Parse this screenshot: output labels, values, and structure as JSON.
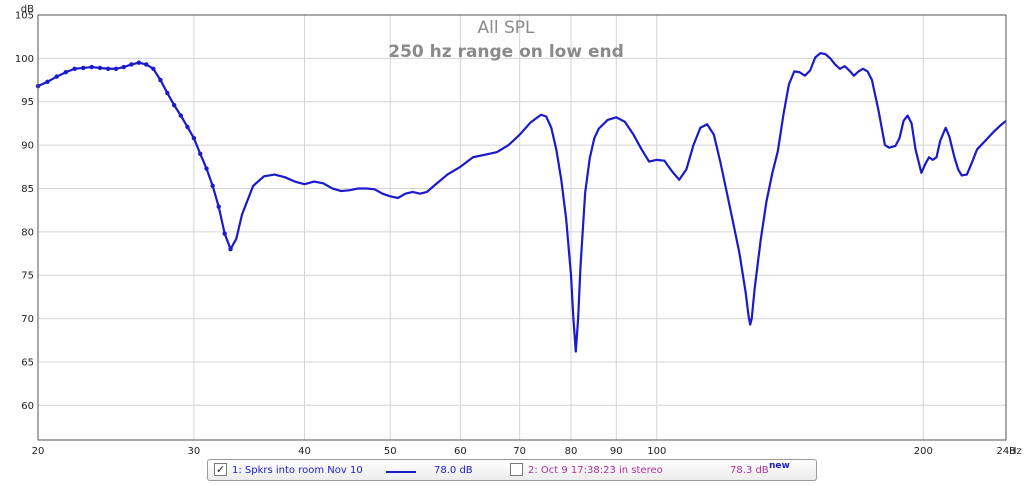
{
  "chart_data": {
    "type": "line",
    "title": "All SPL",
    "subtitle": "250 hz range on low end",
    "ylabel": "dB",
    "xunit": "Hz",
    "xscale": "log",
    "xlim": [
      20,
      248
    ],
    "ylim": [
      56,
      105
    ],
    "grid": true,
    "x_ticks": [
      {
        "value": 20,
        "label": "20"
      },
      {
        "value": 30,
        "label": "30"
      },
      {
        "value": 40,
        "label": "40"
      },
      {
        "value": 50,
        "label": "50"
      },
      {
        "value": 60,
        "label": "60"
      },
      {
        "value": 70,
        "label": "70"
      },
      {
        "value": 80,
        "label": "80"
      },
      {
        "value": 90,
        "label": "90"
      },
      {
        "value": 100,
        "label": "100"
      },
      {
        "value": 200,
        "label": "200"
      },
      {
        "value": 248,
        "label": "248"
      }
    ],
    "y_ticks": [
      60,
      65,
      70,
      75,
      80,
      85,
      90,
      95,
      100,
      105
    ],
    "series": [
      {
        "name": "1: Spkrs into room Nov 10",
        "color": "#1a1acc",
        "points": [
          [
            20.0,
            96.8
          ],
          [
            20.5,
            97.3
          ],
          [
            21.0,
            97.9
          ],
          [
            21.5,
            98.4
          ],
          [
            22.0,
            98.8
          ],
          [
            22.5,
            98.9
          ],
          [
            23.0,
            99.0
          ],
          [
            23.5,
            98.9
          ],
          [
            24.0,
            98.8
          ],
          [
            24.5,
            98.8
          ],
          [
            25.0,
            99.0
          ],
          [
            25.5,
            99.3
          ],
          [
            26.0,
            99.5
          ],
          [
            26.5,
            99.3
          ],
          [
            27.0,
            98.8
          ],
          [
            27.5,
            97.5
          ],
          [
            28.0,
            96.0
          ],
          [
            28.5,
            94.6
          ],
          [
            29.0,
            93.4
          ],
          [
            29.5,
            92.1
          ],
          [
            30.0,
            90.8
          ],
          [
            30.5,
            89.0
          ],
          [
            31.0,
            87.3
          ],
          [
            31.5,
            85.3
          ],
          [
            32.0,
            82.9
          ],
          [
            32.5,
            79.8
          ],
          [
            33.0,
            78.0
          ],
          [
            33.5,
            79.2
          ],
          [
            34.0,
            82.0
          ],
          [
            35.0,
            85.3
          ],
          [
            36.0,
            86.4
          ],
          [
            37.0,
            86.6
          ],
          [
            38.0,
            86.3
          ],
          [
            39.0,
            85.8
          ],
          [
            40.0,
            85.5
          ],
          [
            41.0,
            85.8
          ],
          [
            42.0,
            85.6
          ],
          [
            43.0,
            85.0
          ],
          [
            44.0,
            84.7
          ],
          [
            45.0,
            84.8
          ],
          [
            46.0,
            85.0
          ],
          [
            47.0,
            85.0
          ],
          [
            48.0,
            84.9
          ],
          [
            49.0,
            84.4
          ],
          [
            50.0,
            84.1
          ],
          [
            51.0,
            83.9
          ],
          [
            52.0,
            84.4
          ],
          [
            53.0,
            84.6
          ],
          [
            54.0,
            84.4
          ],
          [
            55.0,
            84.6
          ],
          [
            56.0,
            85.3
          ],
          [
            58.0,
            86.6
          ],
          [
            60.0,
            87.5
          ],
          [
            62.0,
            88.6
          ],
          [
            64.0,
            88.9
          ],
          [
            66.0,
            89.2
          ],
          [
            68.0,
            90.0
          ],
          [
            70.0,
            91.2
          ],
          [
            72.0,
            92.6
          ],
          [
            74.0,
            93.5
          ],
          [
            75.0,
            93.3
          ],
          [
            76.0,
            92.0
          ],
          [
            77.0,
            89.5
          ],
          [
            78.0,
            86.0
          ],
          [
            79.0,
            81.5
          ],
          [
            80.0,
            75.0
          ],
          [
            80.5,
            70.0
          ],
          [
            81.0,
            66.2
          ],
          [
            81.5,
            70.0
          ],
          [
            82.0,
            76.0
          ],
          [
            83.0,
            84.5
          ],
          [
            84.0,
            88.5
          ],
          [
            85.0,
            90.8
          ],
          [
            86.0,
            91.9
          ],
          [
            88.0,
            92.9
          ],
          [
            90.0,
            93.2
          ],
          [
            92.0,
            92.7
          ],
          [
            94.0,
            91.3
          ],
          [
            96.0,
            89.6
          ],
          [
            98.0,
            88.1
          ],
          [
            100.0,
            88.3
          ],
          [
            102.0,
            88.2
          ],
          [
            104.0,
            87.0
          ],
          [
            106.0,
            86.0
          ],
          [
            108.0,
            87.2
          ],
          [
            110.0,
            90.0
          ],
          [
            112.0,
            92.0
          ],
          [
            114.0,
            92.4
          ],
          [
            116.0,
            91.2
          ],
          [
            118.0,
            88.0
          ],
          [
            120.0,
            84.5
          ],
          [
            122.0,
            81.0
          ],
          [
            124.0,
            77.5
          ],
          [
            126.0,
            73.0
          ],
          [
            127.0,
            70.2
          ],
          [
            127.5,
            69.3
          ],
          [
            128.0,
            70.0
          ],
          [
            129.0,
            73.5
          ],
          [
            131.0,
            79.0
          ],
          [
            133.0,
            83.5
          ],
          [
            135.0,
            86.7
          ],
          [
            137.0,
            89.3
          ],
          [
            139.0,
            93.5
          ],
          [
            141.0,
            97.0
          ],
          [
            143.0,
            98.5
          ],
          [
            145.0,
            98.4
          ],
          [
            147.0,
            98.0
          ],
          [
            149.0,
            98.6
          ],
          [
            151.0,
            100.1
          ],
          [
            153.0,
            100.6
          ],
          [
            155.0,
            100.5
          ],
          [
            157.0,
            100.0
          ],
          [
            159.0,
            99.3
          ],
          [
            161.0,
            98.8
          ],
          [
            163.0,
            99.1
          ],
          [
            165.0,
            98.6
          ],
          [
            167.0,
            98.0
          ],
          [
            169.0,
            98.5
          ],
          [
            171.0,
            98.8
          ],
          [
            173.0,
            98.5
          ],
          [
            175.0,
            97.5
          ],
          [
            178.0,
            94.0
          ],
          [
            181.0,
            90.0
          ],
          [
            183.0,
            89.7
          ],
          [
            186.0,
            89.9
          ],
          [
            188.0,
            90.8
          ],
          [
            190.0,
            92.8
          ],
          [
            192.0,
            93.4
          ],
          [
            194.0,
            92.5
          ],
          [
            196.0,
            89.5
          ],
          [
            199.0,
            86.8
          ],
          [
            201.0,
            87.8
          ],
          [
            203.0,
            88.6
          ],
          [
            205.0,
            88.3
          ],
          [
            207.0,
            88.6
          ],
          [
            209.0,
            90.5
          ],
          [
            212.0,
            92.0
          ],
          [
            214.0,
            91.0
          ],
          [
            217.0,
            88.5
          ],
          [
            219.0,
            87.2
          ],
          [
            221.0,
            86.5
          ],
          [
            224.0,
            86.6
          ],
          [
            227.0,
            88.0
          ],
          [
            230.0,
            89.5
          ],
          [
            235.0,
            90.5
          ],
          [
            240.0,
            91.5
          ],
          [
            244.0,
            92.2
          ],
          [
            248.0,
            92.8
          ]
        ]
      }
    ]
  },
  "legend": {
    "item1": {
      "checkbox": "✓",
      "label": "1: Spkrs into room Nov 10",
      "value": "78.0 dB"
    },
    "item2": {
      "checkbox": "",
      "label": "2: Oct 9 17:38:23 in stereo",
      "value": "78.3 dB",
      "badge": "new"
    }
  }
}
